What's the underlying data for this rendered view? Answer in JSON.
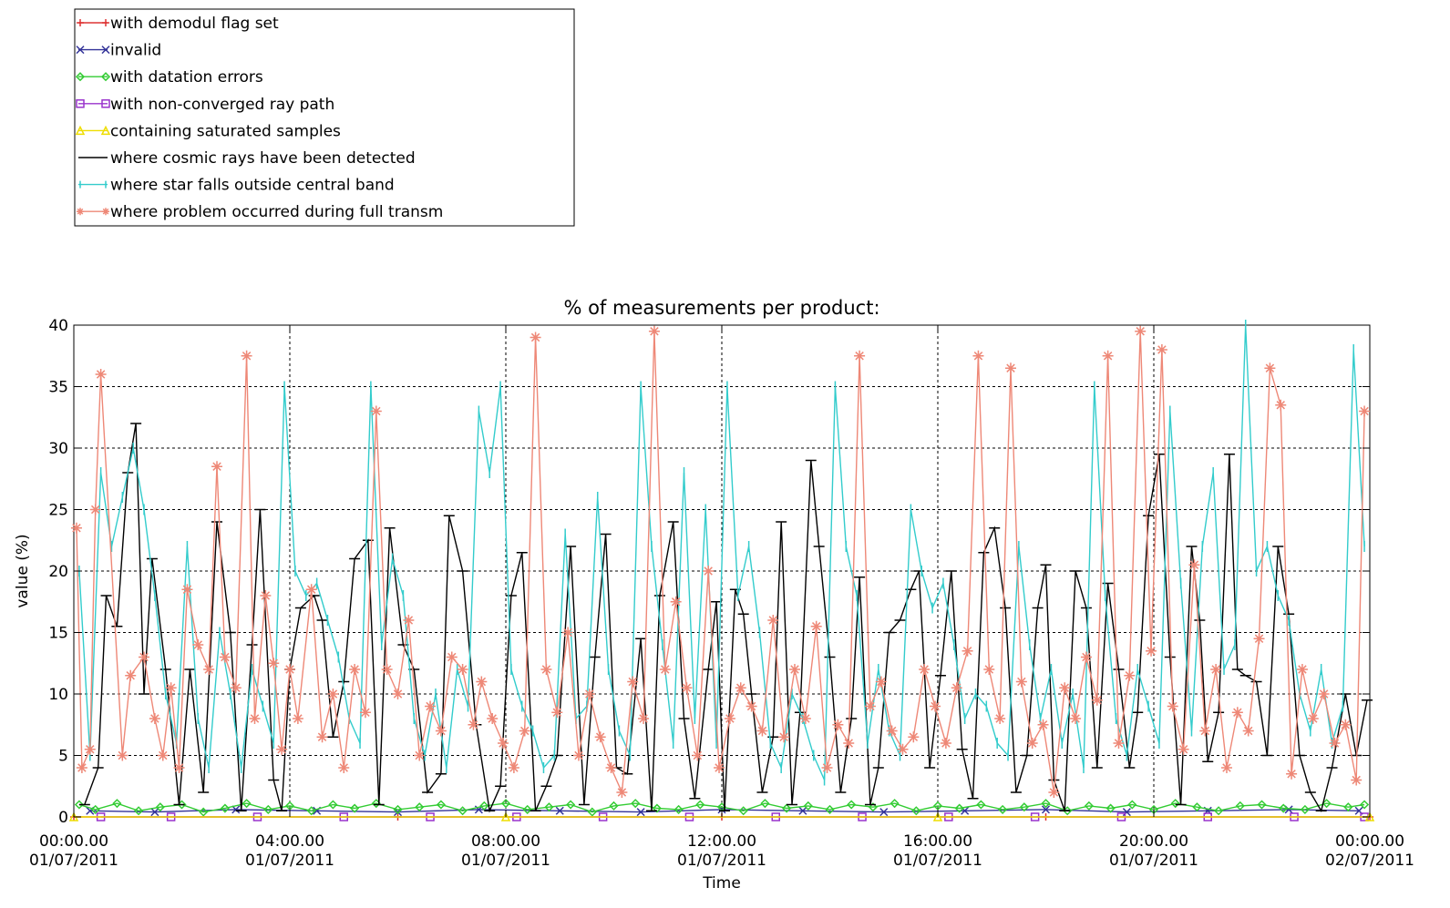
{
  "chart_data": {
    "type": "line",
    "title": "% of measurements per product:",
    "xlabel": "Time",
    "ylabel": "value (%)",
    "ylim": [
      0,
      40
    ],
    "yticks": [
      0,
      5,
      10,
      15,
      20,
      25,
      30,
      35,
      40
    ],
    "xlim_hours": [
      0,
      24
    ],
    "xticks": [
      {
        "hour": 0,
        "time": "00:00.00",
        "date": "01/07/2011"
      },
      {
        "hour": 4,
        "time": "04:00.00",
        "date": "01/07/2011"
      },
      {
        "hour": 8,
        "time": "08:00.00",
        "date": "01/07/2011"
      },
      {
        "hour": 12,
        "time": "12:00.00",
        "date": "01/07/2011"
      },
      {
        "hour": 16,
        "time": "16:00.00",
        "date": "01/07/2011"
      },
      {
        "hour": 20,
        "time": "20:00.00",
        "date": "01/07/2011"
      },
      {
        "hour": 24,
        "time": "00:00.00",
        "date": "02/07/2011"
      }
    ],
    "grid": true,
    "legend_position": "top-left, above plot",
    "series": [
      {
        "name": "with demodul flag set",
        "color": "#dd3333",
        "marker": "plus",
        "x": [
          0,
          6,
          12,
          18,
          24
        ],
        "values": [
          0,
          0,
          0,
          0,
          0
        ]
      },
      {
        "name": "invalid",
        "color": "#333399",
        "marker": "x",
        "x": [
          0.3,
          1.5,
          3,
          4.5,
          6,
          7.5,
          9,
          10.5,
          12,
          13.5,
          15,
          16.5,
          18,
          19.5,
          21,
          22.5,
          23.8
        ],
        "values": [
          0.5,
          0.4,
          0.6,
          0.5,
          0.4,
          0.6,
          0.5,
          0.4,
          0.6,
          0.5,
          0.4,
          0.5,
          0.6,
          0.4,
          0.5,
          0.6,
          0.5
        ]
      },
      {
        "name": "with datation errors",
        "color": "#33cc33",
        "marker": "diamond",
        "x": [
          0.1,
          0.4,
          0.8,
          1.2,
          1.6,
          2.0,
          2.4,
          2.8,
          3.2,
          3.6,
          4.0,
          4.4,
          4.8,
          5.2,
          5.6,
          6.0,
          6.4,
          6.8,
          7.2,
          7.6,
          8.0,
          8.4,
          8.8,
          9.2,
          9.6,
          10.0,
          10.4,
          10.8,
          11.2,
          11.6,
          12.0,
          12.4,
          12.8,
          13.2,
          13.6,
          14.0,
          14.4,
          14.8,
          15.2,
          15.6,
          16.0,
          16.4,
          16.8,
          17.2,
          17.6,
          18.0,
          18.4,
          18.8,
          19.2,
          19.6,
          20.0,
          20.4,
          20.8,
          21.2,
          21.6,
          22.0,
          22.4,
          22.8,
          23.2,
          23.6,
          23.9
        ],
        "values": [
          1.0,
          0.6,
          1.1,
          0.5,
          0.8,
          1.0,
          0.4,
          0.7,
          1.1,
          0.6,
          0.9,
          0.5,
          1.0,
          0.7,
          1.1,
          0.6,
          0.8,
          1.0,
          0.5,
          0.9,
          1.1,
          0.6,
          0.8,
          1.0,
          0.4,
          0.9,
          1.1,
          0.7,
          0.6,
          1.0,
          0.8,
          0.5,
          1.1,
          0.7,
          0.9,
          0.6,
          1.0,
          0.8,
          1.1,
          0.5,
          0.9,
          0.7,
          1.0,
          0.6,
          0.8,
          1.1,
          0.5,
          0.9,
          0.7,
          1.0,
          0.6,
          1.1,
          0.8,
          0.5,
          0.9,
          1.0,
          0.7,
          0.6,
          1.1,
          0.8,
          1.0
        ]
      },
      {
        "name": "with non-converged ray path",
        "color": "#9933cc",
        "marker": "square",
        "x": [
          0.5,
          1.8,
          3.4,
          5.0,
          6.6,
          8.2,
          9.8,
          11.4,
          13.0,
          14.6,
          16.2,
          17.8,
          19.4,
          21.0,
          22.6,
          23.9
        ],
        "values": [
          0,
          0,
          0,
          0,
          0,
          0,
          0,
          0,
          0,
          0,
          0,
          0,
          0,
          0,
          0,
          0
        ]
      },
      {
        "name": "containing saturated samples",
        "color": "#eedd00",
        "marker": "triangle",
        "x": [
          0,
          8,
          16,
          24
        ],
        "values": [
          0,
          0,
          0,
          0
        ]
      },
      {
        "name": "where cosmic rays have been detected",
        "color": "#000000",
        "marker": "dash",
        "x": [
          0.2,
          0.45,
          0.6,
          0.8,
          1.0,
          1.15,
          1.3,
          1.45,
          1.7,
          1.95,
          2.15,
          2.4,
          2.65,
          2.9,
          3.1,
          3.3,
          3.45,
          3.7,
          3.85,
          4.0,
          4.2,
          4.45,
          4.6,
          4.8,
          5.0,
          5.2,
          5.45,
          5.65,
          5.85,
          6.1,
          6.3,
          6.55,
          6.8,
          6.95,
          7.2,
          7.45,
          7.7,
          7.9,
          8.1,
          8.3,
          8.55,
          8.75,
          8.95,
          9.2,
          9.45,
          9.65,
          9.85,
          10.05,
          10.25,
          10.5,
          10.7,
          10.85,
          11.1,
          11.3,
          11.5,
          11.75,
          11.9,
          12.05,
          12.25,
          12.4,
          12.55,
          12.75,
          12.95,
          13.1,
          13.3,
          13.45,
          13.65,
          13.8,
          14.0,
          14.2,
          14.4,
          14.55,
          14.75,
          14.9,
          15.1,
          15.3,
          15.5,
          15.65,
          15.85,
          16.05,
          16.25,
          16.45,
          16.65,
          16.85,
          17.05,
          17.25,
          17.45,
          17.65,
          17.85,
          18.0,
          18.15,
          18.35,
          18.55,
          18.75,
          18.95,
          19.15,
          19.35,
          19.55,
          19.7,
          19.9,
          20.1,
          20.3,
          20.5,
          20.7,
          20.85,
          21.0,
          21.2,
          21.4,
          21.55,
          21.7,
          21.9,
          22.1,
          22.3,
          22.5,
          22.7,
          22.9,
          23.1,
          23.3,
          23.55,
          23.75,
          23.95
        ],
        "values": [
          1.0,
          4.0,
          18.0,
          15.5,
          28.0,
          32.0,
          10.0,
          21.0,
          12.0,
          1.0,
          12.0,
          2.0,
          24.0,
          15.0,
          0.5,
          14.0,
          25.0,
          3.0,
          0.5,
          12.0,
          17.0,
          18.0,
          16.0,
          6.5,
          11.0,
          21.0,
          22.5,
          1.0,
          23.5,
          14.0,
          12.0,
          2.0,
          3.5,
          24.5,
          20.0,
          7.5,
          0.5,
          2.5,
          18.0,
          21.5,
          0.5,
          2.5,
          5.0,
          22.0,
          1.0,
          13.0,
          23.0,
          4.0,
          3.5,
          14.5,
          0.5,
          18.0,
          24.0,
          8.0,
          1.5,
          12.0,
          17.5,
          0.5,
          18.5,
          16.5,
          10.0,
          2.0,
          6.5,
          24.0,
          1.0,
          8.5,
          29.0,
          22.0,
          13.0,
          2.0,
          8.0,
          19.5,
          1.0,
          4.0,
          15.0,
          16.0,
          18.5,
          20.0,
          4.0,
          11.5,
          20.0,
          5.5,
          1.5,
          21.5,
          23.5,
          17.0,
          2.0,
          5.0,
          17.0,
          20.5,
          3.0,
          0.5,
          20.0,
          17.0,
          4.0,
          19.0,
          12.0,
          4.0,
          8.5,
          24.5,
          29.5,
          13.0,
          1.0,
          22.0,
          16.0,
          4.5,
          8.5,
          29.5,
          12.0,
          11.5,
          11.0,
          5.0,
          22.0,
          16.5,
          5.0,
          2.0,
          0.5,
          4.0,
          10.0,
          5.0,
          9.5
        ]
      },
      {
        "name": "where star falls outside central band",
        "color": "#33cccc",
        "marker": "vbar",
        "x": [
          0.1,
          0.3,
          0.5,
          0.7,
          0.9,
          1.1,
          1.3,
          1.5,
          1.7,
          1.9,
          2.1,
          2.3,
          2.5,
          2.7,
          2.9,
          3.1,
          3.3,
          3.5,
          3.7,
          3.9,
          4.1,
          4.3,
          4.5,
          4.7,
          4.9,
          5.1,
          5.3,
          5.5,
          5.7,
          5.9,
          6.1,
          6.3,
          6.5,
          6.7,
          6.9,
          7.1,
          7.3,
          7.5,
          7.7,
          7.9,
          8.1,
          8.3,
          8.5,
          8.7,
          8.9,
          9.1,
          9.3,
          9.5,
          9.7,
          9.9,
          10.1,
          10.3,
          10.5,
          10.7,
          10.9,
          11.1,
          11.3,
          11.5,
          11.7,
          11.9,
          12.1,
          12.3,
          12.5,
          12.7,
          12.9,
          13.1,
          13.3,
          13.5,
          13.7,
          13.9,
          14.1,
          14.3,
          14.5,
          14.7,
          14.9,
          15.1,
          15.3,
          15.5,
          15.7,
          15.9,
          16.1,
          16.3,
          16.5,
          16.7,
          16.9,
          17.1,
          17.3,
          17.5,
          17.7,
          17.9,
          18.1,
          18.3,
          18.5,
          18.7,
          18.9,
          19.1,
          19.3,
          19.5,
          19.7,
          19.9,
          20.1,
          20.3,
          20.5,
          20.7,
          20.9,
          21.1,
          21.3,
          21.5,
          21.7,
          21.9,
          22.1,
          22.3,
          22.5,
          22.7,
          22.9,
          23.1,
          23.3,
          23.5,
          23.7,
          23.9
        ],
        "values": [
          20.0,
          5.0,
          28.0,
          22.0,
          26.0,
          30.0,
          25.0,
          18.0,
          10.0,
          6.0,
          22.0,
          8.0,
          4.0,
          15.0,
          10.0,
          4.0,
          12.0,
          9.0,
          6.0,
          35.0,
          20.0,
          18.0,
          19.0,
          16.0,
          13.0,
          8.0,
          6.0,
          35.0,
          14.0,
          21.0,
          18.0,
          8.0,
          5.0,
          10.0,
          4.0,
          12.0,
          9.0,
          33.0,
          28.0,
          35.0,
          12.0,
          9.0,
          7.0,
          4.0,
          5.0,
          23.0,
          8.0,
          9.0,
          26.0,
          12.0,
          7.0,
          5.0,
          35.0,
          22.0,
          14.0,
          6.0,
          28.0,
          8.0,
          25.0,
          6.0,
          35.0,
          18.0,
          22.0,
          15.0,
          6.0,
          4.0,
          10.0,
          8.0,
          5.0,
          3.0,
          35.0,
          22.0,
          18.0,
          6.0,
          12.0,
          7.0,
          5.0,
          25.0,
          20.0,
          17.0,
          19.0,
          14.0,
          8.0,
          10.0,
          9.0,
          6.0,
          5.0,
          22.0,
          14.0,
          8.0,
          12.0,
          6.0,
          10.0,
          4.0,
          35.0,
          18.0,
          8.0,
          5.0,
          12.0,
          9.0,
          6.0,
          33.0,
          19.0,
          7.0,
          22.0,
          28.0,
          12.0,
          14.0,
          40.0,
          20.0,
          22.0,
          18.0,
          16.0,
          10.0,
          7.0,
          12.0,
          6.0,
          9.0,
          38.0,
          22.0
        ]
      },
      {
        "name": "where problem occurred during full transm",
        "color": "#ee8877",
        "marker": "star",
        "x": [
          0.05,
          0.15,
          0.3,
          0.4,
          0.5,
          0.9,
          1.05,
          1.3,
          1.5,
          1.65,
          1.8,
          1.95,
          2.1,
          2.3,
          2.5,
          2.65,
          2.8,
          3.0,
          3.2,
          3.35,
          3.55,
          3.7,
          3.85,
          4.0,
          4.15,
          4.4,
          4.6,
          4.8,
          5.0,
          5.2,
          5.4,
          5.6,
          5.8,
          6.0,
          6.2,
          6.4,
          6.6,
          6.8,
          7.0,
          7.2,
          7.4,
          7.55,
          7.75,
          7.95,
          8.15,
          8.35,
          8.55,
          8.75,
          8.95,
          9.15,
          9.35,
          9.55,
          9.75,
          9.95,
          10.15,
          10.35,
          10.55,
          10.75,
          10.95,
          11.15,
          11.35,
          11.55,
          11.75,
          11.95,
          12.15,
          12.35,
          12.55,
          12.75,
          12.95,
          13.15,
          13.35,
          13.55,
          13.75,
          13.95,
          14.15,
          14.35,
          14.55,
          14.75,
          14.95,
          15.15,
          15.35,
          15.55,
          15.75,
          15.95,
          16.15,
          16.35,
          16.55,
          16.75,
          16.95,
          17.15,
          17.35,
          17.55,
          17.75,
          17.95,
          18.15,
          18.35,
          18.55,
          18.75,
          18.95,
          19.15,
          19.35,
          19.55,
          19.75,
          19.95,
          20.15,
          20.35,
          20.55,
          20.75,
          20.95,
          21.15,
          21.35,
          21.55,
          21.75,
          21.95,
          22.15,
          22.35,
          22.55,
          22.75,
          22.95,
          23.15,
          23.35,
          23.55,
          23.75,
          23.9
        ],
        "values": [
          23.5,
          4.0,
          5.5,
          25.0,
          36.0,
          5.0,
          11.5,
          13.0,
          8.0,
          5.0,
          10.5,
          4.0,
          18.5,
          14.0,
          12.0,
          28.5,
          13.0,
          10.5,
          37.5,
          8.0,
          18.0,
          12.5,
          5.5,
          12.0,
          8.0,
          18.5,
          6.5,
          10.0,
          4.0,
          12.0,
          8.5,
          33.0,
          12.0,
          10.0,
          16.0,
          5.0,
          9.0,
          7.0,
          13.0,
          12.0,
          7.5,
          11.0,
          8.0,
          6.0,
          4.0,
          7.0,
          39.0,
          12.0,
          8.5,
          15.0,
          5.0,
          10.0,
          6.5,
          4.0,
          2.0,
          11.0,
          8.0,
          39.5,
          12.0,
          17.5,
          10.5,
          5.0,
          20.0,
          4.0,
          8.0,
          10.5,
          9.0,
          7.0,
          16.0,
          6.5,
          12.0,
          8.0,
          15.5,
          4.0,
          7.5,
          6.0,
          37.5,
          9.0,
          11.0,
          7.0,
          5.5,
          6.5,
          12.0,
          9.0,
          6.0,
          10.5,
          13.5,
          37.5,
          12.0,
          8.0,
          36.5,
          11.0,
          6.0,
          7.5,
          2.0,
          10.5,
          8.0,
          13.0,
          9.5,
          37.5,
          6.0,
          11.5,
          39.5,
          13.5,
          38.0,
          9.0,
          5.5,
          20.5,
          7.0,
          12.0,
          4.0,
          8.5,
          7.0,
          14.5,
          36.5,
          33.5,
          3.5,
          12.0,
          8.0,
          10.0,
          6.0,
          7.5,
          3.0,
          33.0
        ]
      }
    ]
  }
}
